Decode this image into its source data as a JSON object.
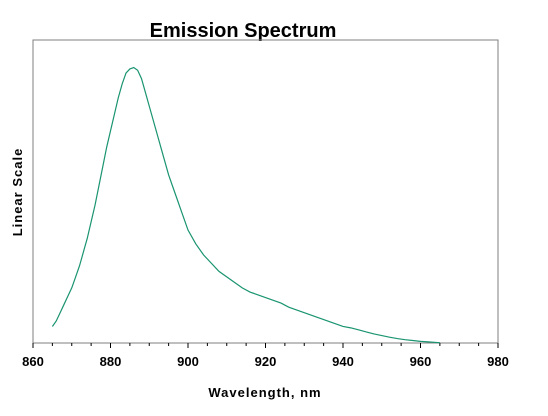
{
  "chart_data": {
    "type": "line",
    "title": "Emission Spectrum",
    "xlabel": "Wavelength, nm",
    "ylabel": "Linear Scale",
    "xlim": [
      860,
      980
    ],
    "ylim": [
      0,
      1.1
    ],
    "xticks": [
      860,
      880,
      900,
      920,
      940,
      960,
      980
    ],
    "y_tick_labels": false,
    "grid": false,
    "line_color": "#1a9470",
    "series": [
      {
        "x": [
          865,
          866,
          867,
          868,
          869,
          870,
          871,
          872,
          873,
          874,
          875,
          876,
          877,
          878,
          879,
          880,
          881,
          882,
          883,
          884,
          885,
          886,
          887,
          888,
          889,
          890,
          891,
          892,
          893,
          894,
          895,
          896,
          897,
          898,
          899,
          900,
          902,
          904,
          906,
          908,
          910,
          912,
          914,
          916,
          918,
          920,
          922,
          924,
          926,
          928,
          930,
          932,
          934,
          936,
          938,
          940,
          942,
          944,
          946,
          948,
          950,
          952,
          954,
          956,
          958,
          960,
          962,
          964,
          965
        ],
        "y": [
          0.06,
          0.08,
          0.11,
          0.14,
          0.17,
          0.2,
          0.24,
          0.28,
          0.33,
          0.38,
          0.44,
          0.5,
          0.57,
          0.64,
          0.71,
          0.77,
          0.83,
          0.89,
          0.94,
          0.98,
          0.995,
          1.0,
          0.99,
          0.96,
          0.91,
          0.86,
          0.81,
          0.76,
          0.71,
          0.66,
          0.61,
          0.57,
          0.53,
          0.49,
          0.45,
          0.41,
          0.36,
          0.32,
          0.29,
          0.26,
          0.24,
          0.22,
          0.2,
          0.185,
          0.175,
          0.165,
          0.155,
          0.145,
          0.13,
          0.12,
          0.11,
          0.1,
          0.09,
          0.08,
          0.07,
          0.06,
          0.055,
          0.048,
          0.04,
          0.033,
          0.027,
          0.021,
          0.016,
          0.012,
          0.009,
          0.006,
          0.004,
          0.002,
          0.001
        ]
      }
    ]
  }
}
